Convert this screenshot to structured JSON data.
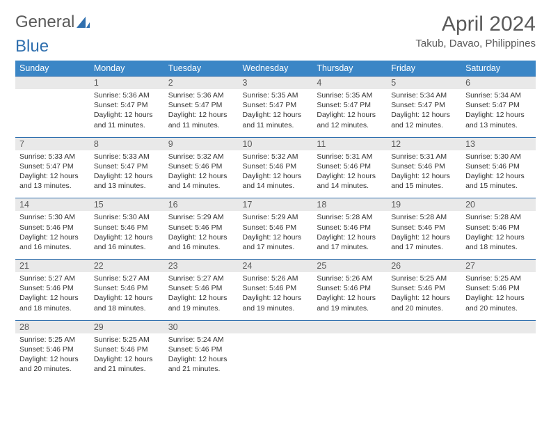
{
  "logo": {
    "text_a": "General",
    "text_b": "Blue",
    "icon_color": "#2f6fae"
  },
  "title": "April 2024",
  "location": "Takub, Davao, Philippines",
  "colors": {
    "header_bg": "#3b86c6",
    "header_text": "#ffffff",
    "daynum_bg": "#e9e9e9",
    "rule": "#2f6fae",
    "body_text": "#333333",
    "muted_text": "#5a5a5a"
  },
  "weekdays": [
    "Sunday",
    "Monday",
    "Tuesday",
    "Wednesday",
    "Thursday",
    "Friday",
    "Saturday"
  ],
  "weeks": [
    {
      "nums": [
        "",
        "1",
        "2",
        "3",
        "4",
        "5",
        "6"
      ],
      "cells": [
        null,
        {
          "sunrise": "Sunrise: 5:36 AM",
          "sunset": "Sunset: 5:47 PM",
          "d1": "Daylight: 12 hours",
          "d2": "and 11 minutes."
        },
        {
          "sunrise": "Sunrise: 5:36 AM",
          "sunset": "Sunset: 5:47 PM",
          "d1": "Daylight: 12 hours",
          "d2": "and 11 minutes."
        },
        {
          "sunrise": "Sunrise: 5:35 AM",
          "sunset": "Sunset: 5:47 PM",
          "d1": "Daylight: 12 hours",
          "d2": "and 11 minutes."
        },
        {
          "sunrise": "Sunrise: 5:35 AM",
          "sunset": "Sunset: 5:47 PM",
          "d1": "Daylight: 12 hours",
          "d2": "and 12 minutes."
        },
        {
          "sunrise": "Sunrise: 5:34 AM",
          "sunset": "Sunset: 5:47 PM",
          "d1": "Daylight: 12 hours",
          "d2": "and 12 minutes."
        },
        {
          "sunrise": "Sunrise: 5:34 AM",
          "sunset": "Sunset: 5:47 PM",
          "d1": "Daylight: 12 hours",
          "d2": "and 13 minutes."
        }
      ]
    },
    {
      "nums": [
        "7",
        "8",
        "9",
        "10",
        "11",
        "12",
        "13"
      ],
      "cells": [
        {
          "sunrise": "Sunrise: 5:33 AM",
          "sunset": "Sunset: 5:47 PM",
          "d1": "Daylight: 12 hours",
          "d2": "and 13 minutes."
        },
        {
          "sunrise": "Sunrise: 5:33 AM",
          "sunset": "Sunset: 5:47 PM",
          "d1": "Daylight: 12 hours",
          "d2": "and 13 minutes."
        },
        {
          "sunrise": "Sunrise: 5:32 AM",
          "sunset": "Sunset: 5:46 PM",
          "d1": "Daylight: 12 hours",
          "d2": "and 14 minutes."
        },
        {
          "sunrise": "Sunrise: 5:32 AM",
          "sunset": "Sunset: 5:46 PM",
          "d1": "Daylight: 12 hours",
          "d2": "and 14 minutes."
        },
        {
          "sunrise": "Sunrise: 5:31 AM",
          "sunset": "Sunset: 5:46 PM",
          "d1": "Daylight: 12 hours",
          "d2": "and 14 minutes."
        },
        {
          "sunrise": "Sunrise: 5:31 AM",
          "sunset": "Sunset: 5:46 PM",
          "d1": "Daylight: 12 hours",
          "d2": "and 15 minutes."
        },
        {
          "sunrise": "Sunrise: 5:30 AM",
          "sunset": "Sunset: 5:46 PM",
          "d1": "Daylight: 12 hours",
          "d2": "and 15 minutes."
        }
      ]
    },
    {
      "nums": [
        "14",
        "15",
        "16",
        "17",
        "18",
        "19",
        "20"
      ],
      "cells": [
        {
          "sunrise": "Sunrise: 5:30 AM",
          "sunset": "Sunset: 5:46 PM",
          "d1": "Daylight: 12 hours",
          "d2": "and 16 minutes."
        },
        {
          "sunrise": "Sunrise: 5:30 AM",
          "sunset": "Sunset: 5:46 PM",
          "d1": "Daylight: 12 hours",
          "d2": "and 16 minutes."
        },
        {
          "sunrise": "Sunrise: 5:29 AM",
          "sunset": "Sunset: 5:46 PM",
          "d1": "Daylight: 12 hours",
          "d2": "and 16 minutes."
        },
        {
          "sunrise": "Sunrise: 5:29 AM",
          "sunset": "Sunset: 5:46 PM",
          "d1": "Daylight: 12 hours",
          "d2": "and 17 minutes."
        },
        {
          "sunrise": "Sunrise: 5:28 AM",
          "sunset": "Sunset: 5:46 PM",
          "d1": "Daylight: 12 hours",
          "d2": "and 17 minutes."
        },
        {
          "sunrise": "Sunrise: 5:28 AM",
          "sunset": "Sunset: 5:46 PM",
          "d1": "Daylight: 12 hours",
          "d2": "and 17 minutes."
        },
        {
          "sunrise": "Sunrise: 5:28 AM",
          "sunset": "Sunset: 5:46 PM",
          "d1": "Daylight: 12 hours",
          "d2": "and 18 minutes."
        }
      ]
    },
    {
      "nums": [
        "21",
        "22",
        "23",
        "24",
        "25",
        "26",
        "27"
      ],
      "cells": [
        {
          "sunrise": "Sunrise: 5:27 AM",
          "sunset": "Sunset: 5:46 PM",
          "d1": "Daylight: 12 hours",
          "d2": "and 18 minutes."
        },
        {
          "sunrise": "Sunrise: 5:27 AM",
          "sunset": "Sunset: 5:46 PM",
          "d1": "Daylight: 12 hours",
          "d2": "and 18 minutes."
        },
        {
          "sunrise": "Sunrise: 5:27 AM",
          "sunset": "Sunset: 5:46 PM",
          "d1": "Daylight: 12 hours",
          "d2": "and 19 minutes."
        },
        {
          "sunrise": "Sunrise: 5:26 AM",
          "sunset": "Sunset: 5:46 PM",
          "d1": "Daylight: 12 hours",
          "d2": "and 19 minutes."
        },
        {
          "sunrise": "Sunrise: 5:26 AM",
          "sunset": "Sunset: 5:46 PM",
          "d1": "Daylight: 12 hours",
          "d2": "and 19 minutes."
        },
        {
          "sunrise": "Sunrise: 5:25 AM",
          "sunset": "Sunset: 5:46 PM",
          "d1": "Daylight: 12 hours",
          "d2": "and 20 minutes."
        },
        {
          "sunrise": "Sunrise: 5:25 AM",
          "sunset": "Sunset: 5:46 PM",
          "d1": "Daylight: 12 hours",
          "d2": "and 20 minutes."
        }
      ]
    },
    {
      "nums": [
        "28",
        "29",
        "30",
        "",
        "",
        "",
        ""
      ],
      "cells": [
        {
          "sunrise": "Sunrise: 5:25 AM",
          "sunset": "Sunset: 5:46 PM",
          "d1": "Daylight: 12 hours",
          "d2": "and 20 minutes."
        },
        {
          "sunrise": "Sunrise: 5:25 AM",
          "sunset": "Sunset: 5:46 PM",
          "d1": "Daylight: 12 hours",
          "d2": "and 21 minutes."
        },
        {
          "sunrise": "Sunrise: 5:24 AM",
          "sunset": "Sunset: 5:46 PM",
          "d1": "Daylight: 12 hours",
          "d2": "and 21 minutes."
        },
        null,
        null,
        null,
        null
      ]
    }
  ]
}
